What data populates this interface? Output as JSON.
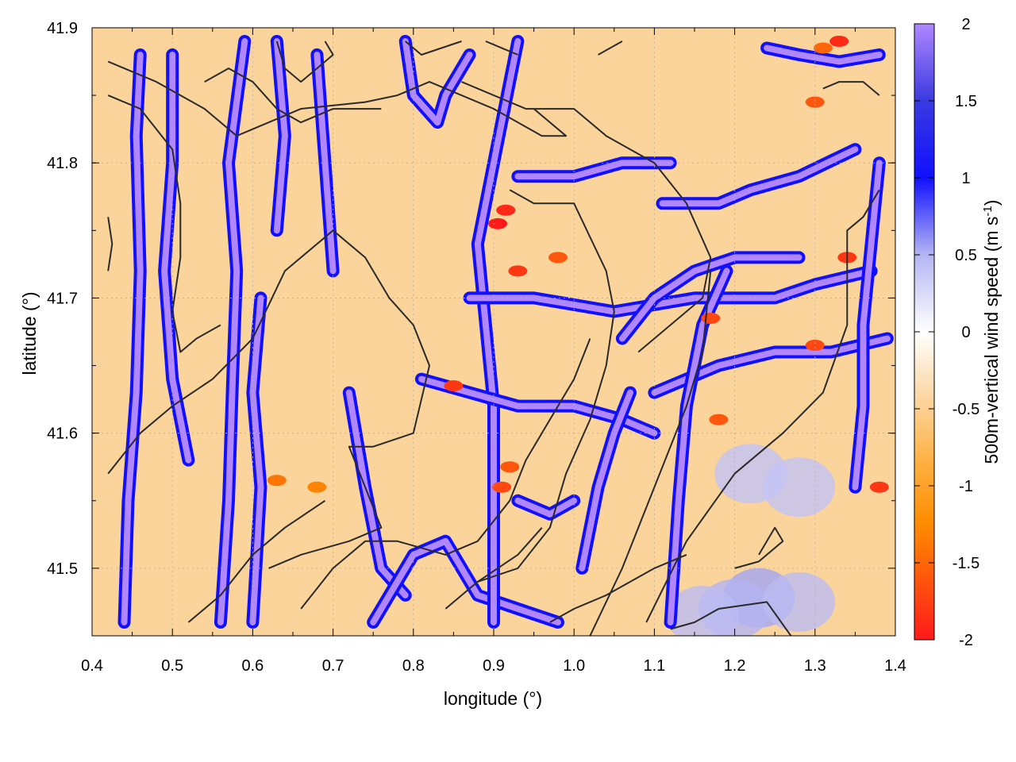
{
  "chart_data": {
    "type": "heatmap",
    "title": "",
    "xlabel": "longitude (°)",
    "ylabel": "latitude (°)",
    "colorbar_label": "500m-vertical wind speed (m s-1)",
    "colorbar_label_main": "500m-vertical wind speed (m s",
    "colorbar_label_sup": "-1",
    "colorbar_label_close": ")",
    "xlim": [
      0.4,
      1.4
    ],
    "ylim": [
      41.45,
      41.9
    ],
    "clim": [
      -2,
      2
    ],
    "x_ticks": [
      "0.4",
      "0.5",
      "0.6",
      "0.7",
      "0.8",
      "0.9",
      "1.0",
      "1.1",
      "1.2",
      "1.3",
      "1.4"
    ],
    "y_ticks": [
      "41.5",
      "41.6",
      "41.7",
      "41.8",
      "41.9"
    ],
    "colorbar_ticks": [
      "2",
      "1.5",
      "1",
      "0.5",
      "0",
      "-0.5",
      "-1",
      "-1.5",
      "-2"
    ],
    "colormap": [
      {
        "v": -2,
        "color": "#ff1a1a"
      },
      {
        "v": -1.25,
        "color": "#ff8c00"
      },
      {
        "v": -0.85,
        "color": "#ffb040"
      },
      {
        "v": -0.4,
        "color": "#fbd9a8"
      },
      {
        "v": 0,
        "color": "#ffffff"
      },
      {
        "v": 0.5,
        "color": "#b4b4f2"
      },
      {
        "v": 1,
        "color": "#1010ff"
      },
      {
        "v": 1.5,
        "color": "#3a3ae0"
      },
      {
        "v": 2,
        "color": "#b087ff"
      }
    ],
    "grid": true,
    "background_value": -0.45,
    "updraft_paths": [
      [
        [
          0.44,
          41.46
        ],
        [
          0.445,
          41.55
        ],
        [
          0.455,
          41.63
        ],
        [
          0.46,
          41.72
        ],
        [
          0.455,
          41.82
        ],
        [
          0.46,
          41.88
        ]
      ],
      [
        [
          0.56,
          41.46
        ],
        [
          0.57,
          41.55
        ],
        [
          0.575,
          41.64
        ],
        [
          0.58,
          41.72
        ],
        [
          0.57,
          41.8
        ],
        [
          0.59,
          41.89
        ]
      ],
      [
        [
          0.5,
          41.88
        ],
        [
          0.5,
          41.8
        ],
        [
          0.49,
          41.72
        ],
        [
          0.5,
          41.64
        ],
        [
          0.52,
          41.58
        ]
      ],
      [
        [
          0.6,
          41.46
        ],
        [
          0.61,
          41.56
        ],
        [
          0.6,
          41.63
        ],
        [
          0.61,
          41.7
        ]
      ],
      [
        [
          0.63,
          41.89
        ],
        [
          0.64,
          41.82
        ],
        [
          0.63,
          41.75
        ]
      ],
      [
        [
          0.68,
          41.88
        ],
        [
          0.69,
          41.8
        ],
        [
          0.7,
          41.72
        ]
      ],
      [
        [
          0.72,
          41.63
        ],
        [
          0.74,
          41.56
        ],
        [
          0.76,
          41.5
        ],
        [
          0.79,
          41.48
        ]
      ],
      [
        [
          0.75,
          41.46
        ],
        [
          0.8,
          41.51
        ],
        [
          0.84,
          41.52
        ],
        [
          0.88,
          41.48
        ],
        [
          0.93,
          41.47
        ],
        [
          0.98,
          41.46
        ]
      ],
      [
        [
          0.79,
          41.89
        ],
        [
          0.8,
          41.85
        ],
        [
          0.83,
          41.83
        ],
        [
          0.84,
          41.85
        ],
        [
          0.87,
          41.88
        ]
      ],
      [
        [
          0.9,
          41.46
        ],
        [
          0.9,
          41.55
        ],
        [
          0.9,
          41.62
        ],
        [
          0.89,
          41.68
        ],
        [
          0.88,
          41.74
        ],
        [
          0.9,
          41.8
        ],
        [
          0.92,
          41.86
        ],
        [
          0.93,
          41.89
        ]
      ],
      [
        [
          0.87,
          41.7
        ],
        [
          0.95,
          41.7
        ],
        [
          1.05,
          41.69
        ],
        [
          1.15,
          41.7
        ],
        [
          1.25,
          41.7
        ],
        [
          1.3,
          41.71
        ],
        [
          1.37,
          41.72
        ]
      ],
      [
        [
          0.93,
          41.79
        ],
        [
          1.0,
          41.79
        ],
        [
          1.06,
          41.8
        ],
        [
          1.12,
          41.8
        ]
      ],
      [
        [
          1.11,
          41.77
        ],
        [
          1.18,
          41.77
        ],
        [
          1.22,
          41.78
        ],
        [
          1.28,
          41.79
        ],
        [
          1.35,
          41.81
        ]
      ],
      [
        [
          0.81,
          41.64
        ],
        [
          0.87,
          41.63
        ],
        [
          0.93,
          41.62
        ],
        [
          1.0,
          41.62
        ],
        [
          1.06,
          41.61
        ],
        [
          1.1,
          41.6
        ]
      ],
      [
        [
          1.1,
          41.63
        ],
        [
          1.18,
          41.65
        ],
        [
          1.25,
          41.66
        ],
        [
          1.32,
          41.66
        ],
        [
          1.39,
          41.67
        ]
      ],
      [
        [
          1.12,
          41.46
        ],
        [
          1.13,
          41.55
        ],
        [
          1.14,
          41.62
        ],
        [
          1.16,
          41.68
        ],
        [
          1.19,
          41.72
        ]
      ],
      [
        [
          1.01,
          41.5
        ],
        [
          1.03,
          41.56
        ],
        [
          1.05,
          41.6
        ],
        [
          1.07,
          41.63
        ]
      ],
      [
        [
          1.24,
          41.885
        ],
        [
          1.28,
          41.88
        ],
        [
          1.33,
          41.875
        ],
        [
          1.38,
          41.88
        ]
      ],
      [
        [
          1.35,
          41.56
        ],
        [
          1.36,
          41.62
        ],
        [
          1.36,
          41.68
        ],
        [
          1.37,
          41.74
        ],
        [
          1.38,
          41.8
        ]
      ],
      [
        [
          1.06,
          41.67
        ],
        [
          1.1,
          41.7
        ],
        [
          1.15,
          41.72
        ],
        [
          1.2,
          41.73
        ],
        [
          1.28,
          41.73
        ]
      ],
      [
        [
          0.93,
          41.55
        ],
        [
          0.97,
          41.54
        ],
        [
          1.0,
          41.55
        ]
      ]
    ],
    "downdraft_spots": [
      {
        "x": 0.905,
        "y": 41.755,
        "v": -2
      },
      {
        "x": 0.915,
        "y": 41.765,
        "v": -1.9
      },
      {
        "x": 0.93,
        "y": 41.72,
        "v": -1.8
      },
      {
        "x": 0.98,
        "y": 41.73,
        "v": -1.6
      },
      {
        "x": 0.85,
        "y": 41.635,
        "v": -1.8
      },
      {
        "x": 0.91,
        "y": 41.56,
        "v": -1.7
      },
      {
        "x": 0.92,
        "y": 41.575,
        "v": -1.6
      },
      {
        "x": 1.17,
        "y": 41.685,
        "v": -1.7
      },
      {
        "x": 1.34,
        "y": 41.73,
        "v": -1.8
      },
      {
        "x": 1.33,
        "y": 41.89,
        "v": -1.9
      },
      {
        "x": 1.31,
        "y": 41.885,
        "v": -1.5
      },
      {
        "x": 1.3,
        "y": 41.845,
        "v": -1.6
      },
      {
        "x": 1.3,
        "y": 41.665,
        "v": -1.7
      },
      {
        "x": 1.38,
        "y": 41.56,
        "v": -1.8
      },
      {
        "x": 1.18,
        "y": 41.61,
        "v": -1.6
      },
      {
        "x": 0.63,
        "y": 41.565,
        "v": -1.4
      },
      {
        "x": 0.68,
        "y": 41.56,
        "v": -1.3
      }
    ],
    "weak_updraft_patches": [
      {
        "x": 1.23,
        "y": 41.478,
        "v": 0.55
      },
      {
        "x": 1.2,
        "y": 41.47,
        "v": 0.5
      },
      {
        "x": 1.28,
        "y": 41.475,
        "v": 0.45
      },
      {
        "x": 1.16,
        "y": 41.465,
        "v": 0.45
      },
      {
        "x": 1.28,
        "y": 41.56,
        "v": 0.4
      },
      {
        "x": 1.22,
        "y": 41.57,
        "v": 0.4
      }
    ],
    "contours": [
      [
        [
          0.42,
          41.875
        ],
        [
          0.48,
          41.86
        ],
        [
          0.54,
          41.84
        ],
        [
          0.58,
          41.82
        ],
        [
          0.66,
          41.84
        ],
        [
          0.74,
          41.845
        ],
        [
          0.78,
          41.85
        ],
        [
          0.82,
          41.86
        ],
        [
          0.9,
          41.84
        ],
        [
          0.96,
          41.82
        ],
        [
          0.99,
          41.82
        ],
        [
          0.95,
          41.84
        ]
      ],
      [
        [
          0.42,
          41.85
        ],
        [
          0.46,
          41.84
        ],
        [
          0.5,
          41.81
        ],
        [
          0.51,
          41.77
        ],
        [
          0.51,
          41.73
        ],
        [
          0.5,
          41.69
        ],
        [
          0.51,
          41.66
        ],
        [
          0.53,
          41.67
        ],
        [
          0.56,
          41.68
        ]
      ],
      [
        [
          0.54,
          41.86
        ],
        [
          0.57,
          41.87
        ],
        [
          0.6,
          41.86
        ],
        [
          0.63,
          41.84
        ],
        [
          0.66,
          41.83
        ],
        [
          0.7,
          41.84
        ],
        [
          0.76,
          41.84
        ]
      ],
      [
        [
          0.63,
          41.89
        ],
        [
          0.64,
          41.87
        ],
        [
          0.66,
          41.86
        ],
        [
          0.68,
          41.87
        ],
        [
          0.7,
          41.88
        ],
        [
          0.69,
          41.89
        ]
      ],
      [
        [
          0.79,
          41.89
        ],
        [
          0.81,
          41.88
        ],
        [
          0.86,
          41.89
        ]
      ],
      [
        [
          0.89,
          41.89
        ],
        [
          0.93,
          41.88
        ]
      ],
      [
        [
          1.03,
          41.88
        ],
        [
          1.06,
          41.89
        ]
      ],
      [
        [
          0.86,
          41.86
        ],
        [
          0.94,
          41.84
        ],
        [
          1.0,
          41.84
        ],
        [
          1.04,
          41.82
        ],
        [
          1.1,
          41.8
        ],
        [
          1.14,
          41.77
        ],
        [
          1.17,
          41.73
        ],
        [
          1.16,
          41.7
        ],
        [
          1.12,
          41.68
        ],
        [
          1.08,
          41.66
        ]
      ],
      [
        [
          0.92,
          41.78
        ],
        [
          0.95,
          41.77
        ],
        [
          1.0,
          41.77
        ],
        [
          1.04,
          41.72
        ],
        [
          1.05,
          41.69
        ],
        [
          1.04,
          41.65
        ],
        [
          1.02,
          41.61
        ],
        [
          0.99,
          41.57
        ],
        [
          0.97,
          41.53
        ],
        [
          0.93,
          41.5
        ],
        [
          0.88,
          41.49
        ]
      ],
      [
        [
          0.84,
          41.47
        ],
        [
          0.88,
          41.49
        ],
        [
          0.93,
          41.51
        ],
        [
          0.96,
          41.53
        ]
      ],
      [
        [
          0.42,
          41.57
        ],
        [
          0.46,
          41.6
        ],
        [
          0.5,
          41.62
        ],
        [
          0.55,
          41.64
        ],
        [
          0.6,
          41.67
        ],
        [
          0.64,
          41.72
        ],
        [
          0.7,
          41.75
        ],
        [
          0.74,
          41.73
        ],
        [
          0.77,
          41.7
        ],
        [
          0.8,
          41.68
        ],
        [
          0.82,
          41.65
        ],
        [
          0.8,
          41.6
        ],
        [
          0.75,
          41.59
        ],
        [
          0.72,
          41.59
        ],
        [
          0.74,
          41.56
        ],
        [
          0.76,
          41.53
        ],
        [
          0.72,
          41.52
        ],
        [
          0.66,
          41.51
        ],
        [
          0.62,
          41.5
        ]
      ],
      [
        [
          0.52,
          41.46
        ],
        [
          0.56,
          41.48
        ],
        [
          0.6,
          41.51
        ],
        [
          0.64,
          41.53
        ],
        [
          0.69,
          41.55
        ]
      ],
      [
        [
          0.66,
          41.47
        ],
        [
          0.7,
          41.5
        ],
        [
          0.74,
          41.52
        ],
        [
          0.78,
          41.52
        ],
        [
          0.84,
          41.51
        ],
        [
          0.88,
          41.52
        ],
        [
          0.92,
          41.55
        ],
        [
          0.94,
          41.58
        ],
        [
          0.97,
          41.61
        ],
        [
          1.0,
          41.64
        ],
        [
          1.02,
          41.67
        ]
      ],
      [
        [
          1.02,
          41.45
        ],
        [
          1.06,
          41.5
        ],
        [
          1.1,
          41.56
        ],
        [
          1.14,
          41.62
        ],
        [
          1.16,
          41.66
        ],
        [
          1.17,
          41.72
        ]
      ],
      [
        [
          1.09,
          41.46
        ],
        [
          1.14,
          41.52
        ],
        [
          1.2,
          41.57
        ],
        [
          1.26,
          41.6
        ],
        [
          1.31,
          41.63
        ],
        [
          1.34,
          41.68
        ],
        [
          1.34,
          41.75
        ],
        [
          1.36,
          41.76
        ],
        [
          1.38,
          41.78
        ]
      ],
      [
        [
          0.97,
          41.46
        ],
        [
          1.0,
          41.47
        ],
        [
          1.04,
          41.48
        ],
        [
          1.1,
          41.5
        ],
        [
          1.14,
          41.51
        ]
      ],
      [
        [
          1.12,
          41.455
        ],
        [
          1.15,
          41.46
        ],
        [
          1.18,
          41.47
        ],
        [
          1.24,
          41.475
        ],
        [
          1.27,
          41.45
        ]
      ],
      [
        [
          1.2,
          41.5
        ],
        [
          1.23,
          41.505
        ],
        [
          1.26,
          41.52
        ],
        [
          1.25,
          41.53
        ],
        [
          1.23,
          41.51
        ]
      ],
      [
        [
          1.31,
          41.855
        ],
        [
          1.33,
          41.86
        ],
        [
          1.36,
          41.86
        ],
        [
          1.38,
          41.85
        ]
      ],
      [
        [
          0.42,
          41.76
        ],
        [
          0.425,
          41.74
        ],
        [
          0.42,
          41.72
        ]
      ]
    ]
  }
}
